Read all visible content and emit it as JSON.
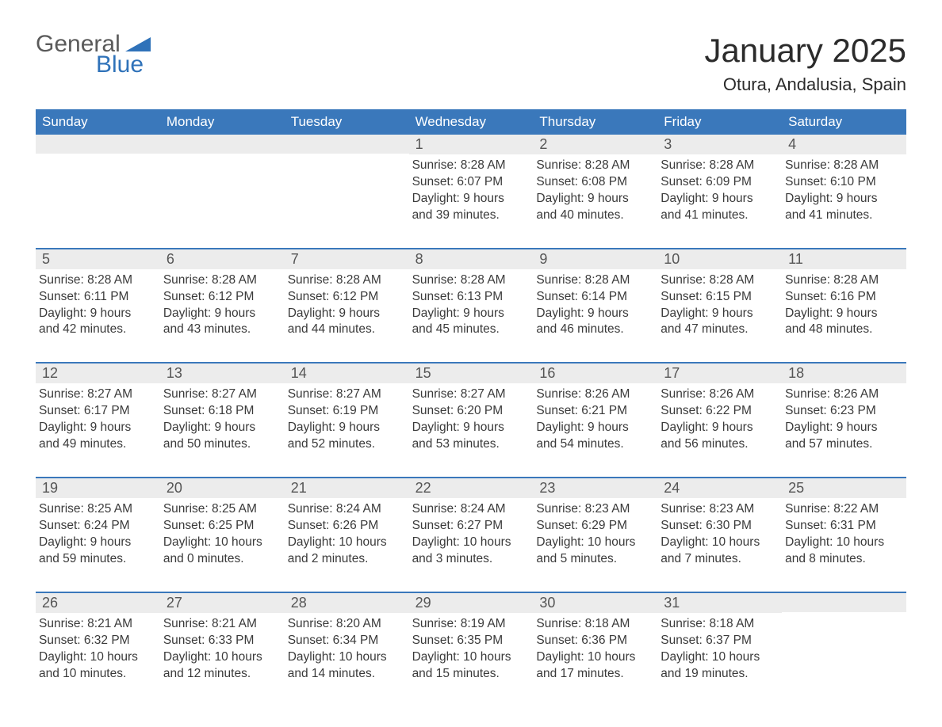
{
  "logo": {
    "text_general": "General",
    "text_blue": "Blue",
    "tri_color": "#2f72b9"
  },
  "title": "January 2025",
  "location": "Otura, Andalusia, Spain",
  "colors": {
    "header_bg": "#3a78bb",
    "header_text": "#ffffff",
    "daynum_bg": "#ececec",
    "daynum_text": "#555555",
    "body_text": "#3a3a3a",
    "week_border": "#3a78bb"
  },
  "weekdays": [
    "Sunday",
    "Monday",
    "Tuesday",
    "Wednesday",
    "Thursday",
    "Friday",
    "Saturday"
  ],
  "weeks": [
    [
      null,
      null,
      null,
      {
        "n": "1",
        "sunrise": "8:28 AM",
        "sunset": "6:07 PM",
        "daylight": "9 hours and 39 minutes."
      },
      {
        "n": "2",
        "sunrise": "8:28 AM",
        "sunset": "6:08 PM",
        "daylight": "9 hours and 40 minutes."
      },
      {
        "n": "3",
        "sunrise": "8:28 AM",
        "sunset": "6:09 PM",
        "daylight": "9 hours and 41 minutes."
      },
      {
        "n": "4",
        "sunrise": "8:28 AM",
        "sunset": "6:10 PM",
        "daylight": "9 hours and 41 minutes."
      }
    ],
    [
      {
        "n": "5",
        "sunrise": "8:28 AM",
        "sunset": "6:11 PM",
        "daylight": "9 hours and 42 minutes."
      },
      {
        "n": "6",
        "sunrise": "8:28 AM",
        "sunset": "6:12 PM",
        "daylight": "9 hours and 43 minutes."
      },
      {
        "n": "7",
        "sunrise": "8:28 AM",
        "sunset": "6:12 PM",
        "daylight": "9 hours and 44 minutes."
      },
      {
        "n": "8",
        "sunrise": "8:28 AM",
        "sunset": "6:13 PM",
        "daylight": "9 hours and 45 minutes."
      },
      {
        "n": "9",
        "sunrise": "8:28 AM",
        "sunset": "6:14 PM",
        "daylight": "9 hours and 46 minutes."
      },
      {
        "n": "10",
        "sunrise": "8:28 AM",
        "sunset": "6:15 PM",
        "daylight": "9 hours and 47 minutes."
      },
      {
        "n": "11",
        "sunrise": "8:28 AM",
        "sunset": "6:16 PM",
        "daylight": "9 hours and 48 minutes."
      }
    ],
    [
      {
        "n": "12",
        "sunrise": "8:27 AM",
        "sunset": "6:17 PM",
        "daylight": "9 hours and 49 minutes."
      },
      {
        "n": "13",
        "sunrise": "8:27 AM",
        "sunset": "6:18 PM",
        "daylight": "9 hours and 50 minutes."
      },
      {
        "n": "14",
        "sunrise": "8:27 AM",
        "sunset": "6:19 PM",
        "daylight": "9 hours and 52 minutes."
      },
      {
        "n": "15",
        "sunrise": "8:27 AM",
        "sunset": "6:20 PM",
        "daylight": "9 hours and 53 minutes."
      },
      {
        "n": "16",
        "sunrise": "8:26 AM",
        "sunset": "6:21 PM",
        "daylight": "9 hours and 54 minutes."
      },
      {
        "n": "17",
        "sunrise": "8:26 AM",
        "sunset": "6:22 PM",
        "daylight": "9 hours and 56 minutes."
      },
      {
        "n": "18",
        "sunrise": "8:26 AM",
        "sunset": "6:23 PM",
        "daylight": "9 hours and 57 minutes."
      }
    ],
    [
      {
        "n": "19",
        "sunrise": "8:25 AM",
        "sunset": "6:24 PM",
        "daylight": "9 hours and 59 minutes."
      },
      {
        "n": "20",
        "sunrise": "8:25 AM",
        "sunset": "6:25 PM",
        "daylight": "10 hours and 0 minutes."
      },
      {
        "n": "21",
        "sunrise": "8:24 AM",
        "sunset": "6:26 PM",
        "daylight": "10 hours and 2 minutes."
      },
      {
        "n": "22",
        "sunrise": "8:24 AM",
        "sunset": "6:27 PM",
        "daylight": "10 hours and 3 minutes."
      },
      {
        "n": "23",
        "sunrise": "8:23 AM",
        "sunset": "6:29 PM",
        "daylight": "10 hours and 5 minutes."
      },
      {
        "n": "24",
        "sunrise": "8:23 AM",
        "sunset": "6:30 PM",
        "daylight": "10 hours and 7 minutes."
      },
      {
        "n": "25",
        "sunrise": "8:22 AM",
        "sunset": "6:31 PM",
        "daylight": "10 hours and 8 minutes."
      }
    ],
    [
      {
        "n": "26",
        "sunrise": "8:21 AM",
        "sunset": "6:32 PM",
        "daylight": "10 hours and 10 minutes."
      },
      {
        "n": "27",
        "sunrise": "8:21 AM",
        "sunset": "6:33 PM",
        "daylight": "10 hours and 12 minutes."
      },
      {
        "n": "28",
        "sunrise": "8:20 AM",
        "sunset": "6:34 PM",
        "daylight": "10 hours and 14 minutes."
      },
      {
        "n": "29",
        "sunrise": "8:19 AM",
        "sunset": "6:35 PM",
        "daylight": "10 hours and 15 minutes."
      },
      {
        "n": "30",
        "sunrise": "8:18 AM",
        "sunset": "6:36 PM",
        "daylight": "10 hours and 17 minutes."
      },
      {
        "n": "31",
        "sunrise": "8:18 AM",
        "sunset": "6:37 PM",
        "daylight": "10 hours and 19 minutes."
      },
      null
    ]
  ],
  "labels": {
    "sunrise": "Sunrise: ",
    "sunset": "Sunset: ",
    "daylight": "Daylight: "
  }
}
